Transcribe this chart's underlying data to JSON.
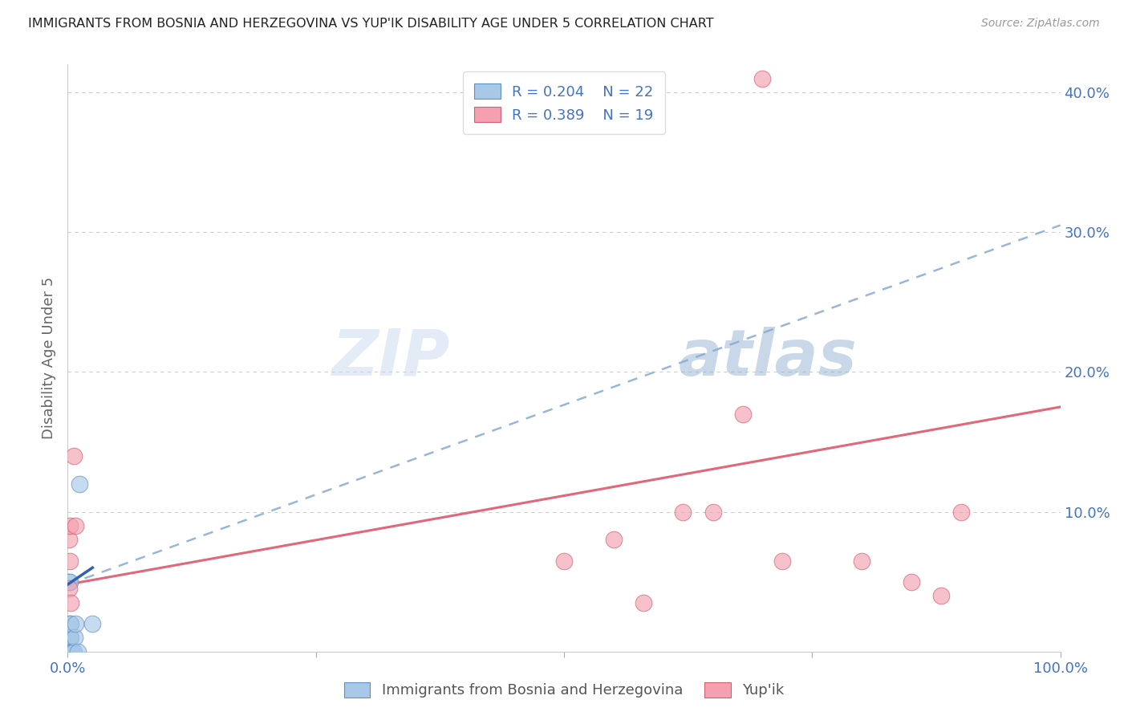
{
  "title": "IMMIGRANTS FROM BOSNIA AND HERZEGOVINA VS YUP'IK DISABILITY AGE UNDER 5 CORRELATION CHART",
  "source": "Source: ZipAtlas.com",
  "ylabel": "Disability Age Under 5",
  "watermark_zip": "ZIP",
  "watermark_atlas": "atlas",
  "blue_R": 0.204,
  "blue_N": 22,
  "pink_R": 0.389,
  "pink_N": 19,
  "blue_color": "#a8c8e8",
  "pink_color": "#f4a0b0",
  "blue_edge_color": "#6090c0",
  "pink_edge_color": "#d06070",
  "blue_line_color": "#88aad0",
  "pink_line_color": "#e06878",
  "blue_solid_color": "#3060b0",
  "legend_text_color": "#4472c4",
  "axis_label_color": "#4472c4",
  "xlim": [
    0.0,
    1.0
  ],
  "ylim": [
    0.0,
    0.42
  ],
  "blue_dashed_line": [
    [
      0.0,
      0.048
    ],
    [
      1.0,
      0.305
    ]
  ],
  "pink_solid_line": [
    [
      0.0,
      0.048
    ],
    [
      1.0,
      0.175
    ]
  ],
  "blue_solid_line": [
    [
      0.0,
      0.048
    ],
    [
      0.025,
      0.06
    ]
  ],
  "blue_points_x": [
    0.001,
    0.001,
    0.001,
    0.001,
    0.001,
    0.001,
    0.002,
    0.002,
    0.002,
    0.002,
    0.003,
    0.003,
    0.003,
    0.003,
    0.004,
    0.005,
    0.006,
    0.007,
    0.008,
    0.01,
    0.012,
    0.025
  ],
  "blue_points_y": [
    0.0,
    0.0,
    0.0,
    0.0,
    0.01,
    0.05,
    0.0,
    0.01,
    0.02,
    0.05,
    0.0,
    0.0,
    0.01,
    0.02,
    0.0,
    0.0,
    0.0,
    0.01,
    0.02,
    0.0,
    0.12,
    0.02
  ],
  "pink_points_x": [
    0.001,
    0.001,
    0.002,
    0.002,
    0.003,
    0.006,
    0.008,
    0.5,
    0.55,
    0.58,
    0.62,
    0.65,
    0.68,
    0.7,
    0.72,
    0.8,
    0.85,
    0.88,
    0.9
  ],
  "pink_points_y": [
    0.045,
    0.08,
    0.065,
    0.09,
    0.035,
    0.14,
    0.09,
    0.065,
    0.08,
    0.035,
    0.1,
    0.1,
    0.17,
    0.41,
    0.065,
    0.065,
    0.05,
    0.04,
    0.1
  ],
  "background_color": "#ffffff",
  "grid_color": "#cccccc"
}
